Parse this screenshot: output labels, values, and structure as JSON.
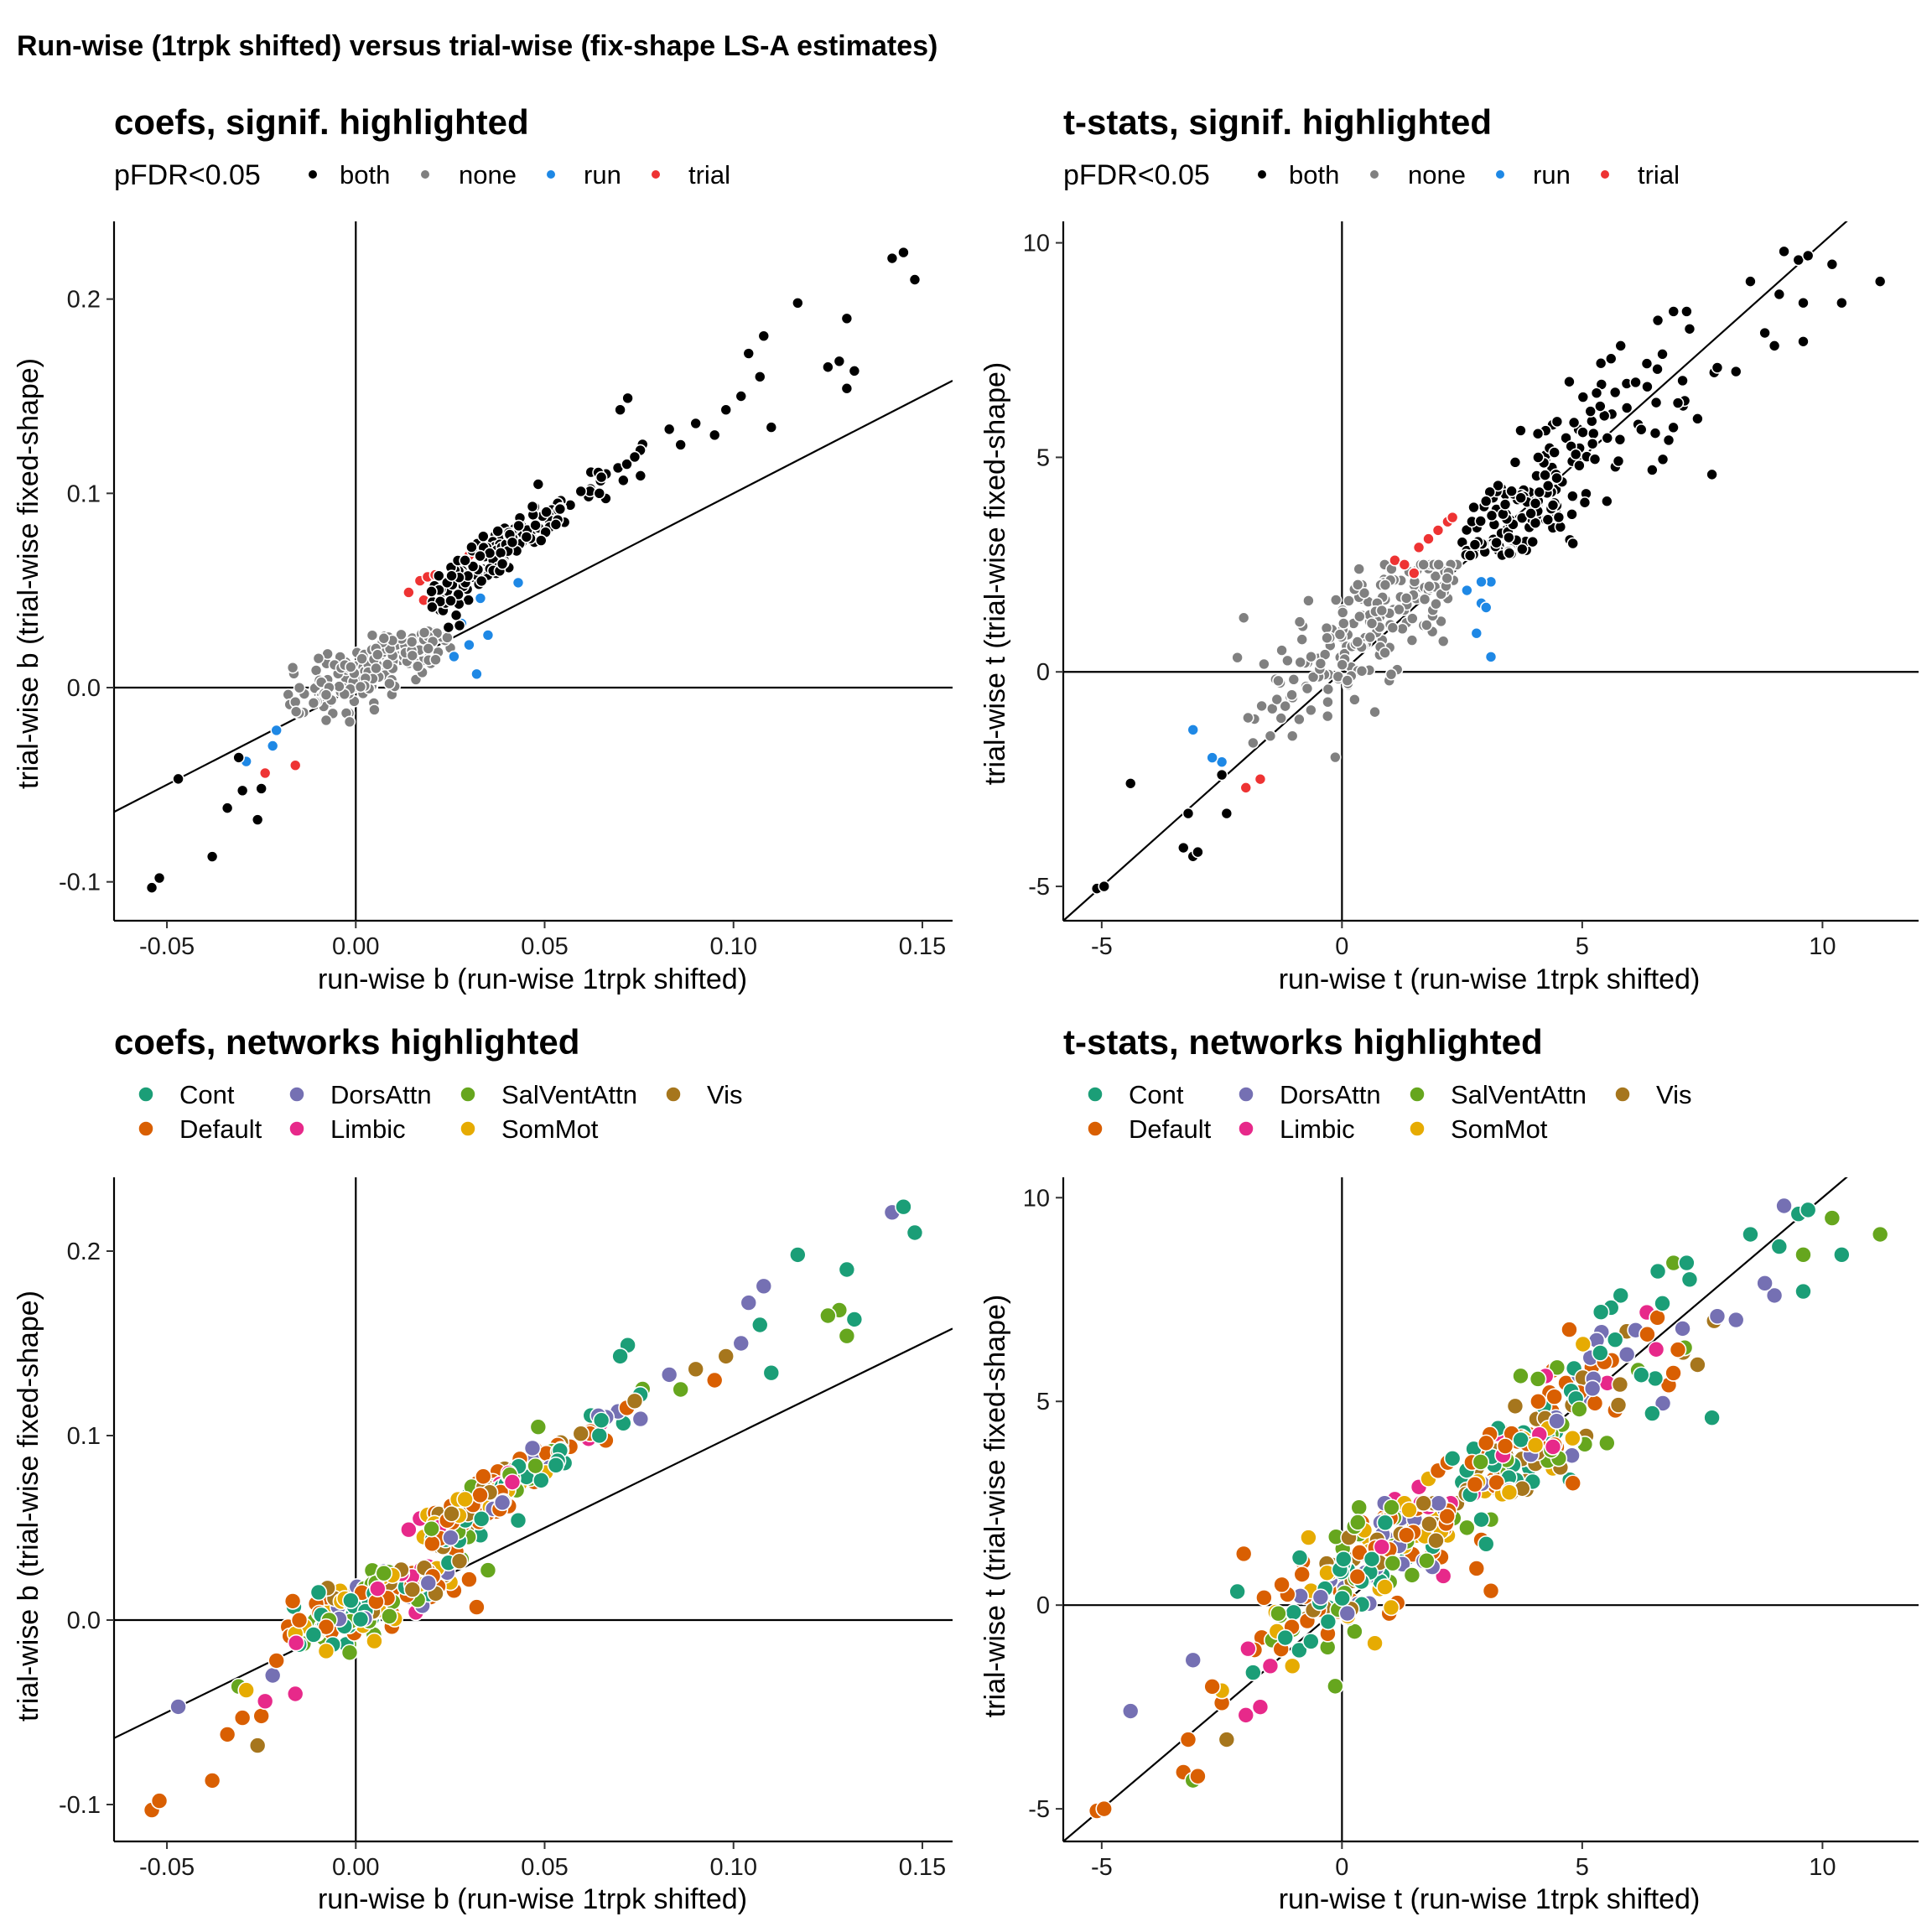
{
  "figure_title": "Run-wise (1trpk shifted) versus trial-wise (fix-shape LS-A estimates)",
  "colors": {
    "signif": {
      "both": "#000000",
      "none": "#808080",
      "run": "#1e88e5",
      "trial": "#ee3333"
    },
    "networks": {
      "Cont": "#1b9e77",
      "Default": "#d95f02",
      "DorsAttn": "#7570b3",
      "Limbic": "#e7298a",
      "SalVentAttn": "#66a61e",
      "SomMot": "#e6ab02",
      "Vis": "#a6761d"
    }
  },
  "chart_data": [
    {
      "id": "coef_signif",
      "type": "scatter",
      "title": "coefs, signif. highlighted",
      "xlabel": "run-wise b (run-wise 1trpk shifted)",
      "ylabel": "trial-wise b (trial-wise fixed-shape)",
      "xlim": [
        -0.064,
        0.158
      ],
      "ylim": [
        -0.12,
        0.24
      ],
      "xticks": [
        -0.05,
        0.0,
        0.05,
        0.1,
        0.15
      ],
      "xtick_labels": [
        "-0.05",
        "0.00",
        "0.05",
        "0.10",
        "0.15"
      ],
      "yticks": [
        -0.1,
        0.0,
        0.1,
        0.2
      ],
      "ytick_labels": [
        "-0.1",
        "0.0",
        "0.1",
        "0.2"
      ],
      "reference_line": {
        "intercept": 0,
        "slope": 1
      },
      "legend": {
        "title": "pFDR<0.05",
        "entries": [
          "both",
          "none",
          "run",
          "trial"
        ],
        "position": "top"
      }
    },
    {
      "id": "t_signif",
      "type": "scatter",
      "title": "t-stats, signif. highlighted",
      "xlabel": "run-wise t (run-wise 1trpk shifted)",
      "ylabel": "trial-wise t (trial-wise fixed-shape)",
      "xlim": [
        -5.8,
        12.0
      ],
      "ylim": [
        -5.8,
        10.5
      ],
      "xticks": [
        -5,
        0,
        5,
        10
      ],
      "xtick_labels": [
        "-5",
        "0",
        "5",
        "10"
      ],
      "yticks": [
        -5,
        0,
        5,
        10
      ],
      "ytick_labels": [
        "-5",
        "0",
        "5",
        "10"
      ],
      "reference_line": {
        "intercept": 0,
        "slope": 1
      },
      "legend": {
        "title": "pFDR<0.05",
        "entries": [
          "both",
          "none",
          "run",
          "trial"
        ],
        "position": "top"
      }
    },
    {
      "id": "coef_net",
      "type": "scatter",
      "title": "coefs, networks highlighted",
      "xlabel": "run-wise b (run-wise 1trpk shifted)",
      "ylabel": "trial-wise b (trial-wise fixed-shape)",
      "xlim": [
        -0.064,
        0.158
      ],
      "ylim": [
        -0.12,
        0.24
      ],
      "xticks": [
        -0.05,
        0.0,
        0.05,
        0.1,
        0.15
      ],
      "xtick_labels": [
        "-0.05",
        "0.00",
        "0.05",
        "0.10",
        "0.15"
      ],
      "yticks": [
        -0.1,
        0.0,
        0.1,
        0.2
      ],
      "ytick_labels": [
        "-0.1",
        "0.0",
        "0.1",
        "0.2"
      ],
      "reference_line": {
        "intercept": 0,
        "slope": 1
      },
      "legend": {
        "title": "",
        "entries": [
          "Cont",
          "Default",
          "DorsAttn",
          "Limbic",
          "SalVentAttn",
          "SomMot",
          "Vis"
        ],
        "position": "top"
      }
    },
    {
      "id": "t_net",
      "type": "scatter",
      "title": "t-stats, networks highlighted",
      "xlabel": "run-wise t (run-wise 1trpk shifted)",
      "ylabel": "trial-wise t (trial-wise fixed-shape)",
      "xlim": [
        -5.8,
        12.0
      ],
      "ylim": [
        -5.8,
        10.5
      ],
      "xticks": [
        -5,
        0,
        5,
        10
      ],
      "xtick_labels": [
        "-5",
        "0",
        "5",
        "10"
      ],
      "yticks": [
        -5,
        0,
        5,
        10
      ],
      "ytick_labels": [
        "-5",
        "0",
        "5",
        "10"
      ],
      "reference_line": {
        "intercept": 0,
        "slope": 1
      },
      "legend": {
        "title": "",
        "entries": [
          "Cont",
          "Default",
          "DorsAttn",
          "Limbic",
          "SalVentAttn",
          "SomMot",
          "Vis"
        ],
        "position": "top"
      }
    }
  ],
  "points": {
    "fields": [
      "coef_x",
      "coef_y",
      "t_x",
      "t_y",
      "signif",
      "network"
    ],
    "values": [
      [
        -0.054,
        -0.103,
        -5.1,
        -5.05,
        "both",
        "Default"
      ],
      [
        -0.052,
        -0.098,
        -4.95,
        -5.0,
        "both",
        "Default"
      ],
      [
        -0.047,
        -0.047,
        -4.4,
        -2.6,
        "both",
        "DorsAttn"
      ],
      [
        -0.038,
        -0.087,
        -3.3,
        -4.1,
        "both",
        "Default"
      ],
      [
        -0.034,
        -0.062,
        -3.2,
        -3.3,
        "both",
        "Default"
      ],
      [
        -0.031,
        -0.036,
        -3.1,
        -4.3,
        "both",
        "SalVentAttn"
      ],
      [
        -0.03,
        -0.053,
        -3.0,
        -4.2,
        "both",
        "Default"
      ],
      [
        -0.026,
        -0.068,
        -2.4,
        -3.3,
        "both",
        "Vis"
      ],
      [
        -0.025,
        -0.052,
        -2.5,
        -2.4,
        "both",
        "Default"
      ],
      [
        -0.029,
        -0.038,
        -2.5,
        -2.1,
        "run",
        "SomMot"
      ],
      [
        -0.022,
        -0.03,
        -3.1,
        -1.35,
        "run",
        "DorsAttn"
      ],
      [
        -0.021,
        -0.022,
        -2.7,
        -2.0,
        "run",
        "Default"
      ],
      [
        -0.024,
        -0.044,
        -2.0,
        -2.7,
        "trial",
        "Limbic"
      ],
      [
        -0.016,
        -0.04,
        -1.7,
        -2.5,
        "trial",
        "Limbic"
      ],
      [
        0.026,
        0.016,
        2.8,
        0.9,
        "run",
        "Default"
      ],
      [
        0.03,
        0.022,
        3.1,
        0.35,
        "run",
        "Default"
      ],
      [
        0.032,
        0.007,
        2.9,
        1.6,
        "run",
        "Default"
      ],
      [
        0.035,
        0.027,
        3.1,
        2.1,
        "run",
        "SalVentAttn"
      ],
      [
        0.028,
        0.033,
        2.6,
        1.9,
        "run",
        "SalVentAttn"
      ],
      [
        0.043,
        0.054,
        2.9,
        2.1,
        "run",
        "Cont"
      ],
      [
        0.033,
        0.046,
        3.0,
        1.5,
        "run",
        "Cont"
      ],
      [
        0.014,
        0.049,
        1.1,
        2.6,
        "trial",
        "Limbic"
      ],
      [
        0.017,
        0.055,
        1.6,
        2.9,
        "trial",
        "Limbic"
      ],
      [
        0.019,
        0.057,
        1.8,
        3.1,
        "trial",
        "SomMot"
      ],
      [
        0.021,
        0.058,
        2.0,
        3.3,
        "trial",
        "Default"
      ],
      [
        0.018,
        0.045,
        1.3,
        2.5,
        "trial",
        "SomMot"
      ],
      [
        0.027,
        0.066,
        2.2,
        3.5,
        "trial",
        "Default"
      ],
      [
        0.03,
        0.068,
        2.3,
        3.6,
        "trial",
        "Cont"
      ],
      [
        0.022,
        0.041,
        1.5,
        2.3,
        "trial",
        "Limbic"
      ],
      [
        0.142,
        0.221,
        9.2,
        9.8,
        "both",
        "DorsAttn"
      ],
      [
        0.145,
        0.224,
        9.5,
        9.6,
        "both",
        "Cont"
      ],
      [
        0.148,
        0.21,
        9.7,
        9.7,
        "both",
        "Cont"
      ],
      [
        0.117,
        0.198,
        8.5,
        9.1,
        "both",
        "Cont"
      ],
      [
        0.13,
        0.19,
        9.1,
        8.8,
        "both",
        "Cont"
      ],
      [
        0.128,
        0.168,
        9.6,
        8.6,
        "both",
        "SalVentAttn"
      ],
      [
        0.132,
        0.163,
        10.4,
        8.6,
        "both",
        "Cont"
      ],
      [
        0.13,
        0.154,
        11.2,
        9.1,
        "both",
        "SalVentAttn"
      ],
      [
        0.125,
        0.165,
        10.2,
        9.5,
        "both",
        "SalVentAttn"
      ],
      [
        0.108,
        0.181,
        9.0,
        7.6,
        "both",
        "DorsAttn"
      ],
      [
        0.104,
        0.172,
        8.8,
        7.9,
        "both",
        "DorsAttn"
      ],
      [
        0.107,
        0.16,
        9.6,
        7.7,
        "both",
        "Cont"
      ],
      [
        0.102,
        0.15,
        8.2,
        7.0,
        "both",
        "DorsAttn"
      ],
      [
        0.11,
        0.134,
        7.7,
        4.6,
        "both",
        "Cont"
      ],
      [
        0.098,
        0.143,
        7.4,
        5.9,
        "both",
        "Vis"
      ],
      [
        0.095,
        0.13,
        6.8,
        5.4,
        "both",
        "Default"
      ],
      [
        0.09,
        0.136,
        7.1,
        6.2,
        "both",
        "Vis"
      ],
      [
        0.086,
        0.125,
        6.9,
        8.4,
        "both",
        "SalVentAttn"
      ],
      [
        0.072,
        0.149,
        5.8,
        7.6,
        "both",
        "Cont"
      ],
      [
        0.07,
        0.143,
        5.6,
        7.3,
        "both",
        "Cont"
      ],
      [
        0.083,
        0.133,
        5.4,
        6.7,
        "both",
        "DorsAttn"
      ]
    ],
    "generated_rest_count_note": ""
  }
}
